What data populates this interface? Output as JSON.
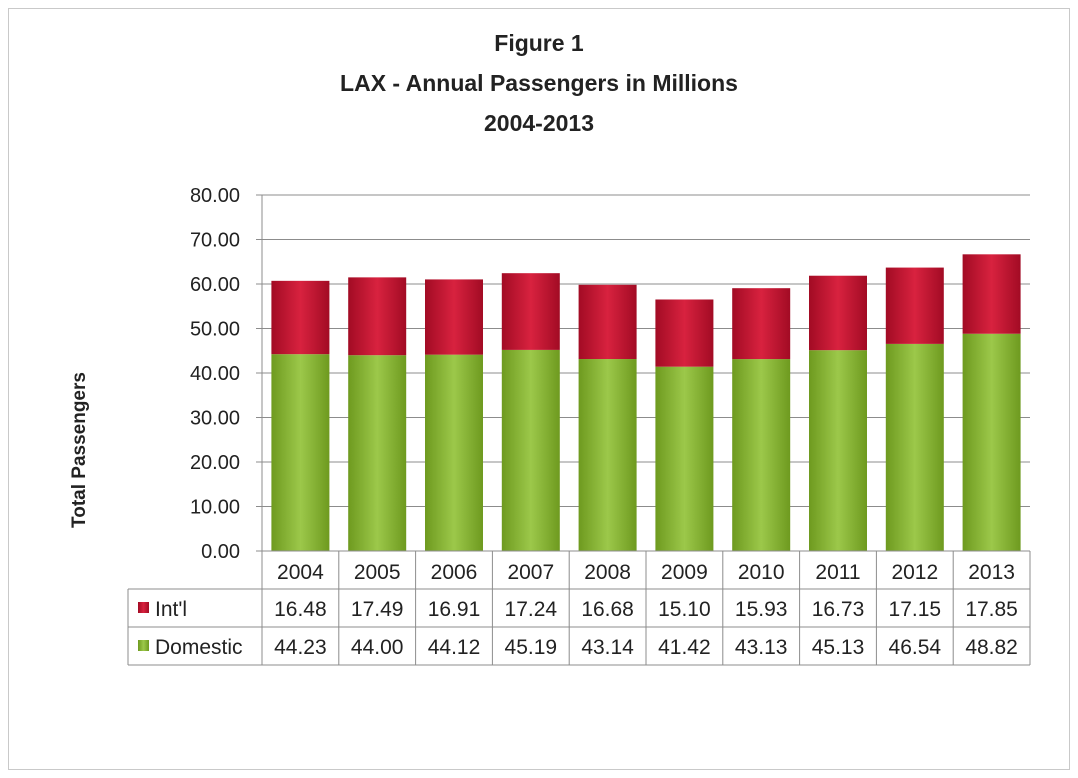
{
  "chart_data": {
    "type": "bar",
    "stacked": true,
    "title_lines": [
      "Figure 1",
      "LAX - Annual Passengers in Millions",
      "2004-2013"
    ],
    "ylabel": "Total Passengers",
    "xlabel": "",
    "ylim": [
      0,
      80
    ],
    "yticks": [
      "0.00",
      "10.00",
      "20.00",
      "30.00",
      "40.00",
      "50.00",
      "60.00",
      "70.00",
      "80.00"
    ],
    "grid": true,
    "legend_placement": "data-table-rows",
    "categories": [
      "2004",
      "2005",
      "2006",
      "2007",
      "2008",
      "2009",
      "2010",
      "2011",
      "2012",
      "2013"
    ],
    "series": [
      {
        "name": "Domestic",
        "color": "#8cb43c",
        "values": [
          44.23,
          44.0,
          44.12,
          45.19,
          43.14,
          41.42,
          43.13,
          45.13,
          46.54,
          48.82
        ],
        "labels": [
          "44.23",
          "44.00",
          "44.12",
          "45.19",
          "43.14",
          "41.42",
          "43.13",
          "45.13",
          "46.54",
          "48.82"
        ]
      },
      {
        "name": "Int'l",
        "color": "#c8102e",
        "values": [
          16.48,
          17.49,
          16.91,
          17.24,
          16.68,
          15.1,
          15.93,
          16.73,
          17.15,
          17.85
        ],
        "labels": [
          "16.48",
          "17.49",
          "16.91",
          "17.24",
          "16.68",
          "15.10",
          "15.93",
          "16.73",
          "17.15",
          "17.85"
        ]
      }
    ],
    "table_row_order": [
      "Int'l",
      "Domestic"
    ]
  }
}
